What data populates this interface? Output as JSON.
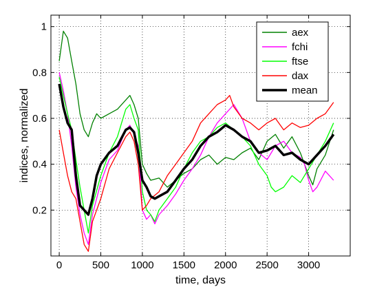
{
  "chart_data": {
    "type": "line",
    "xlabel": "time, days",
    "ylabel": "indices, normalized",
    "xlim": [
      -100,
      3500
    ],
    "ylim": [
      0,
      1.05
    ],
    "xticks": [
      0,
      500,
      1000,
      1500,
      2000,
      2500,
      3000
    ],
    "yticks": [
      0.2,
      0.4,
      0.6,
      0.8,
      1
    ],
    "xtick_labels": [
      "0",
      "500",
      "1000",
      "1500",
      "2000",
      "2500",
      "3000"
    ],
    "ytick_labels": [
      "0.2",
      "0.4",
      "0.6",
      "0.8",
      "1"
    ],
    "grid": true,
    "legend_position": "top-right",
    "series": [
      {
        "name": "aex",
        "color": "#008000",
        "x": [
          0,
          50,
          100,
          150,
          200,
          250,
          300,
          350,
          400,
          450,
          500,
          600,
          700,
          800,
          850,
          900,
          950,
          1000,
          1050,
          1100,
          1200,
          1300,
          1400,
          1500,
          1600,
          1700,
          1800,
          1900,
          2000,
          2100,
          2200,
          2300,
          2400,
          2500,
          2600,
          2700,
          2800,
          2900,
          3000,
          3050,
          3100,
          3200,
          3300
        ],
        "y": [
          0.85,
          0.98,
          0.95,
          0.85,
          0.75,
          0.62,
          0.55,
          0.52,
          0.58,
          0.62,
          0.6,
          0.62,
          0.64,
          0.68,
          0.7,
          0.66,
          0.6,
          0.4,
          0.36,
          0.33,
          0.34,
          0.3,
          0.33,
          0.36,
          0.38,
          0.42,
          0.44,
          0.4,
          0.43,
          0.42,
          0.45,
          0.47,
          0.42,
          0.5,
          0.53,
          0.47,
          0.52,
          0.45,
          0.35,
          0.31,
          0.38,
          0.44,
          0.55
        ]
      },
      {
        "name": "fchi",
        "color": "#ff00ff",
        "x": [
          0,
          50,
          100,
          150,
          200,
          250,
          300,
          350,
          400,
          500,
          600,
          700,
          800,
          850,
          900,
          950,
          1000,
          1050,
          1100,
          1150,
          1200,
          1300,
          1400,
          1500,
          1600,
          1700,
          1800,
          1900,
          2000,
          2100,
          2200,
          2300,
          2400,
          2500,
          2600,
          2700,
          2800,
          2900,
          2950,
          3000,
          3050,
          3100,
          3200,
          3300
        ],
        "y": [
          0.8,
          0.72,
          0.62,
          0.48,
          0.3,
          0.18,
          0.1,
          0.05,
          0.18,
          0.32,
          0.42,
          0.46,
          0.55,
          0.57,
          0.53,
          0.48,
          0.2,
          0.16,
          0.18,
          0.14,
          0.18,
          0.22,
          0.27,
          0.33,
          0.38,
          0.44,
          0.52,
          0.58,
          0.62,
          0.66,
          0.6,
          0.5,
          0.45,
          0.42,
          0.48,
          0.5,
          0.45,
          0.43,
          0.4,
          0.33,
          0.28,
          0.3,
          0.37,
          0.33
        ]
      },
      {
        "name": "ftse",
        "color": "#00ff00",
        "x": [
          0,
          50,
          100,
          150,
          200,
          250,
          300,
          350,
          400,
          500,
          600,
          700,
          750,
          800,
          850,
          900,
          950,
          1000,
          1050,
          1100,
          1150,
          1200,
          1300,
          1400,
          1500,
          1600,
          1700,
          1800,
          1900,
          2000,
          2100,
          2200,
          2300,
          2400,
          2500,
          2550,
          2600,
          2700,
          2800,
          2900,
          3000,
          3100,
          3200,
          3300
        ],
        "y": [
          0.78,
          0.7,
          0.62,
          0.55,
          0.42,
          0.3,
          0.2,
          0.1,
          0.22,
          0.35,
          0.45,
          0.52,
          0.58,
          0.64,
          0.66,
          0.6,
          0.55,
          0.28,
          0.2,
          0.18,
          0.15,
          0.2,
          0.25,
          0.3,
          0.38,
          0.45,
          0.5,
          0.52,
          0.56,
          0.58,
          0.55,
          0.52,
          0.48,
          0.4,
          0.35,
          0.3,
          0.28,
          0.3,
          0.35,
          0.32,
          0.38,
          0.44,
          0.5,
          0.58
        ]
      },
      {
        "name": "dax",
        "color": "#ff0000",
        "x": [
          0,
          50,
          100,
          150,
          200,
          250,
          300,
          350,
          400,
          500,
          600,
          700,
          800,
          850,
          900,
          950,
          1000,
          1050,
          1100,
          1200,
          1300,
          1400,
          1500,
          1600,
          1700,
          1800,
          1900,
          2000,
          2050,
          2100,
          2200,
          2300,
          2400,
          2500,
          2600,
          2700,
          2800,
          2900,
          3000,
          3100,
          3200,
          3300
        ],
        "y": [
          0.55,
          0.45,
          0.35,
          0.28,
          0.25,
          0.15,
          0.05,
          0.02,
          0.15,
          0.25,
          0.38,
          0.45,
          0.52,
          0.54,
          0.5,
          0.4,
          0.2,
          0.22,
          0.25,
          0.28,
          0.35,
          0.4,
          0.45,
          0.5,
          0.58,
          0.62,
          0.66,
          0.68,
          0.7,
          0.65,
          0.6,
          0.58,
          0.55,
          0.58,
          0.6,
          0.55,
          0.58,
          0.56,
          0.57,
          0.6,
          0.62,
          0.67
        ]
      },
      {
        "name": "mean",
        "color": "#000000",
        "width": 3.5,
        "x": [
          0,
          50,
          100,
          150,
          200,
          250,
          300,
          350,
          400,
          450,
          500,
          600,
          700,
          800,
          850,
          900,
          950,
          1000,
          1050,
          1100,
          1150,
          1200,
          1300,
          1400,
          1500,
          1600,
          1700,
          1800,
          1900,
          2000,
          2050,
          2100,
          2200,
          2300,
          2400,
          2500,
          2600,
          2700,
          2800,
          2900,
          3000,
          3100,
          3200,
          3300
        ],
        "y": [
          0.75,
          0.65,
          0.58,
          0.55,
          0.35,
          0.22,
          0.2,
          0.18,
          0.25,
          0.35,
          0.4,
          0.45,
          0.48,
          0.55,
          0.56,
          0.54,
          0.45,
          0.33,
          0.3,
          0.26,
          0.25,
          0.26,
          0.28,
          0.33,
          0.38,
          0.42,
          0.48,
          0.52,
          0.54,
          0.57,
          0.56,
          0.55,
          0.52,
          0.5,
          0.45,
          0.46,
          0.48,
          0.44,
          0.45,
          0.42,
          0.4,
          0.44,
          0.48,
          0.53
        ]
      }
    ]
  }
}
